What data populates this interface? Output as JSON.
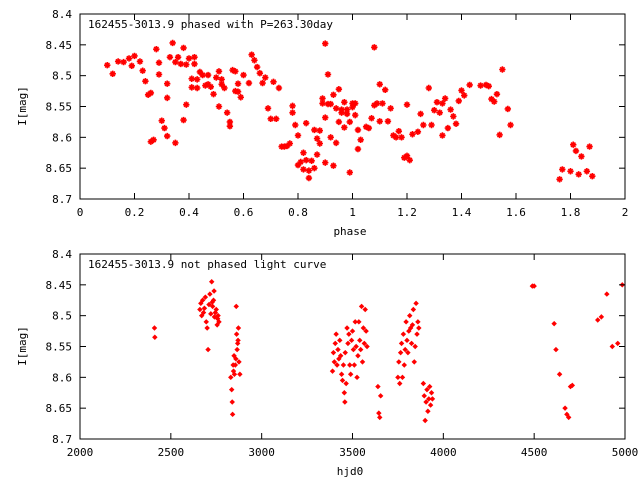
{
  "chart_data": [
    {
      "type": "scatter",
      "title": "162455-3013.9 phased with P=263.30day",
      "xlabel": "phase",
      "ylabel": "I[mag]",
      "xlim": [
        0,
        2
      ],
      "ylim": [
        8.4,
        8.7
      ],
      "y_inverted": true,
      "xticks": [
        "0",
        "0.2",
        "0.4",
        "0.6",
        "0.8",
        "1",
        "1.2",
        "1.4",
        "1.6",
        "1.8",
        "2"
      ],
      "yticks": [
        "8.4",
        "8.45",
        "8.5",
        "8.55",
        "8.6",
        "8.65",
        "8.7"
      ],
      "marker": "plus-bold",
      "color": "#ff0000",
      "points": [
        [
          0.1,
          8.483
        ],
        [
          0.12,
          8.497
        ],
        [
          0.14,
          8.477
        ],
        [
          0.16,
          8.478
        ],
        [
          0.18,
          8.472
        ],
        [
          0.19,
          8.484
        ],
        [
          0.2,
          8.468
        ],
        [
          0.22,
          8.477
        ],
        [
          0.23,
          8.492
        ],
        [
          0.24,
          8.509
        ],
        [
          0.25,
          8.531
        ],
        [
          0.26,
          8.528
        ],
        [
          0.26,
          8.607
        ],
        [
          0.27,
          8.604
        ],
        [
          0.28,
          8.457
        ],
        [
          0.29,
          8.479
        ],
        [
          0.29,
          8.498
        ],
        [
          0.3,
          8.573
        ],
        [
          0.31,
          8.585
        ],
        [
          0.32,
          8.513
        ],
        [
          0.32,
          8.536
        ],
        [
          0.32,
          8.598
        ],
        [
          0.33,
          8.47
        ],
        [
          0.34,
          8.447
        ],
        [
          0.35,
          8.478
        ],
        [
          0.35,
          8.609
        ],
        [
          0.36,
          8.47
        ],
        [
          0.37,
          8.481
        ],
        [
          0.38,
          8.455
        ],
        [
          0.38,
          8.572
        ],
        [
          0.39,
          8.547
        ],
        [
          0.39,
          8.482
        ],
        [
          0.4,
          8.472
        ],
        [
          0.41,
          8.519
        ],
        [
          0.41,
          8.505
        ],
        [
          0.42,
          8.47
        ],
        [
          0.42,
          8.481
        ],
        [
          0.43,
          8.506
        ],
        [
          0.43,
          8.52
        ],
        [
          0.44,
          8.494
        ],
        [
          0.45,
          8.499
        ],
        [
          0.46,
          8.516
        ],
        [
          0.47,
          8.499
        ],
        [
          0.47,
          8.514
        ],
        [
          0.48,
          8.518
        ],
        [
          0.49,
          8.53
        ],
        [
          0.5,
          8.503
        ],
        [
          0.51,
          8.493
        ],
        [
          0.51,
          8.55
        ],
        [
          0.52,
          8.514
        ],
        [
          0.52,
          8.506
        ],
        [
          0.53,
          8.52
        ],
        [
          0.54,
          8.56
        ],
        [
          0.55,
          8.575
        ],
        [
          0.55,
          8.582
        ],
        [
          0.56,
          8.491
        ],
        [
          0.57,
          8.493
        ],
        [
          0.57,
          8.525
        ],
        [
          0.58,
          8.513
        ],
        [
          0.58,
          8.526
        ],
        [
          0.59,
          8.535
        ],
        [
          0.6,
          8.499
        ],
        [
          0.62,
          8.512
        ],
        [
          0.63,
          8.466
        ],
        [
          0.64,
          8.475
        ],
        [
          0.65,
          8.486
        ],
        [
          0.66,
          8.496
        ],
        [
          0.67,
          8.512
        ],
        [
          0.68,
          8.503
        ],
        [
          0.69,
          8.553
        ],
        [
          0.7,
          8.57
        ],
        [
          0.71,
          8.51
        ],
        [
          0.72,
          8.57
        ],
        [
          0.73,
          8.52
        ],
        [
          0.74,
          8.615
        ],
        [
          0.75,
          8.615
        ],
        [
          0.76,
          8.614
        ],
        [
          0.77,
          8.61
        ],
        [
          0.78,
          8.549
        ],
        [
          0.78,
          8.56
        ],
        [
          0.79,
          8.58
        ],
        [
          0.8,
          8.597
        ],
        [
          0.8,
          8.645
        ],
        [
          0.81,
          8.64
        ],
        [
          0.82,
          8.625
        ],
        [
          0.82,
          8.652
        ],
        [
          0.83,
          8.577
        ],
        [
          0.83,
          8.637
        ],
        [
          0.84,
          8.654
        ],
        [
          0.84,
          8.666
        ],
        [
          0.85,
          8.638
        ],
        [
          0.86,
          8.588
        ],
        [
          0.86,
          8.65
        ],
        [
          0.87,
          8.602
        ],
        [
          0.87,
          8.628
        ],
        [
          0.88,
          8.589
        ],
        [
          0.88,
          8.61
        ],
        [
          0.89,
          8.537
        ],
        [
          0.89,
          8.545
        ],
        [
          0.9,
          8.448
        ],
        [
          0.9,
          8.568
        ],
        [
          0.9,
          8.641
        ],
        [
          0.91,
          8.498
        ],
        [
          0.91,
          8.546
        ],
        [
          0.92,
          8.546
        ],
        [
          0.92,
          8.6
        ],
        [
          0.93,
          8.531
        ],
        [
          0.93,
          8.646
        ],
        [
          0.94,
          8.553
        ],
        [
          0.94,
          8.609
        ],
        [
          0.95,
          8.522
        ],
        [
          0.95,
          8.575
        ],
        [
          0.96,
          8.555
        ],
        [
          0.96,
          8.56
        ],
        [
          0.97,
          8.543
        ],
        [
          0.97,
          8.584
        ],
        [
          0.98,
          8.562
        ],
        [
          0.98,
          8.555
        ],
        [
          0.99,
          8.575
        ],
        [
          0.99,
          8.657
        ],
        [
          1.0,
          8.545
        ],
        [
          1.0,
          8.551
        ],
        [
          1.01,
          8.545
        ],
        [
          1.01,
          8.564
        ],
        [
          1.02,
          8.588
        ],
        [
          1.02,
          8.619
        ],
        [
          1.03,
          8.604
        ],
        [
          1.05,
          8.583
        ],
        [
          1.06,
          8.585
        ],
        [
          1.07,
          8.569
        ],
        [
          1.08,
          8.454
        ],
        [
          1.08,
          8.548
        ],
        [
          1.09,
          8.545
        ],
        [
          1.1,
          8.574
        ],
        [
          1.1,
          8.514
        ],
        [
          1.11,
          8.545
        ],
        [
          1.12,
          8.523
        ],
        [
          1.13,
          8.574
        ],
        [
          1.14,
          8.553
        ],
        [
          1.15,
          8.597
        ],
        [
          1.16,
          8.6
        ],
        [
          1.17,
          8.59
        ],
        [
          1.18,
          8.6
        ],
        [
          1.19,
          8.633
        ],
        [
          1.2,
          8.63
        ],
        [
          1.2,
          8.547
        ],
        [
          1.21,
          8.637
        ],
        [
          1.22,
          8.595
        ],
        [
          1.24,
          8.591
        ],
        [
          1.25,
          8.562
        ],
        [
          1.26,
          8.58
        ],
        [
          1.28,
          8.52
        ],
        [
          1.29,
          8.58
        ],
        [
          1.3,
          8.556
        ],
        [
          1.31,
          8.543
        ],
        [
          1.32,
          8.56
        ],
        [
          1.33,
          8.545
        ],
        [
          1.33,
          8.597
        ],
        [
          1.34,
          8.537
        ],
        [
          1.35,
          8.585
        ],
        [
          1.36,
          8.555
        ],
        [
          1.37,
          8.566
        ],
        [
          1.38,
          8.578
        ],
        [
          1.39,
          8.541
        ],
        [
          1.4,
          8.524
        ],
        [
          1.41,
          8.532
        ],
        [
          1.43,
          8.515
        ],
        [
          1.47,
          8.516
        ],
        [
          1.49,
          8.515
        ],
        [
          1.5,
          8.517
        ],
        [
          1.51,
          8.538
        ],
        [
          1.52,
          8.542
        ],
        [
          1.53,
          8.53
        ],
        [
          1.54,
          8.596
        ],
        [
          1.55,
          8.49
        ],
        [
          1.57,
          8.554
        ],
        [
          1.58,
          8.58
        ],
        [
          1.76,
          8.668
        ],
        [
          1.77,
          8.652
        ],
        [
          1.8,
          8.655
        ],
        [
          1.81,
          8.612
        ],
        [
          1.82,
          8.622
        ],
        [
          1.83,
          8.66
        ],
        [
          1.84,
          8.631
        ],
        [
          1.86,
          8.655
        ],
        [
          1.87,
          8.615
        ],
        [
          1.88,
          8.663
        ]
      ]
    },
    {
      "type": "scatter",
      "title": "162455-3013.9 not phased light curve",
      "xlabel": "hjd0",
      "ylabel": "I[mag]",
      "xlim": [
        2000,
        5000
      ],
      "ylim": [
        8.4,
        8.7
      ],
      "y_inverted": true,
      "xticks": [
        "2000",
        "2500",
        "3000",
        "3500",
        "4000",
        "4500",
        "5000"
      ],
      "yticks": [
        "8.4",
        "8.45",
        "8.5",
        "8.55",
        "8.6",
        "8.65",
        "8.7"
      ],
      "marker": "diamond",
      "color": "#ff0000",
      "points": [
        [
          2410,
          8.52
        ],
        [
          2412,
          8.535
        ],
        [
          2660,
          8.49
        ],
        [
          2665,
          8.48
        ],
        [
          2670,
          8.5
        ],
        [
          2675,
          8.475
        ],
        [
          2680,
          8.495
        ],
        [
          2685,
          8.488
        ],
        [
          2690,
          8.47
        ],
        [
          2695,
          8.51
        ],
        [
          2700,
          8.52
        ],
        [
          2705,
          8.555
        ],
        [
          2710,
          8.482
        ],
        [
          2715,
          8.465
        ],
        [
          2720,
          8.497
        ],
        [
          2725,
          8.445
        ],
        [
          2728,
          8.478
        ],
        [
          2730,
          8.485
        ],
        [
          2735,
          8.475
        ],
        [
          2738,
          8.46
        ],
        [
          2740,
          8.502
        ],
        [
          2745,
          8.495
        ],
        [
          2750,
          8.49
        ],
        [
          2755,
          8.515
        ],
        [
          2758,
          8.505
        ],
        [
          2760,
          8.5
        ],
        [
          2765,
          8.51
        ],
        [
          2830,
          8.6
        ],
        [
          2835,
          8.62
        ],
        [
          2838,
          8.64
        ],
        [
          2840,
          8.66
        ],
        [
          2843,
          8.58
        ],
        [
          2845,
          8.59
        ],
        [
          2848,
          8.565
        ],
        [
          2850,
          8.595
        ],
        [
          2855,
          8.58
        ],
        [
          2858,
          8.57
        ],
        [
          2860,
          8.485
        ],
        [
          2862,
          8.53
        ],
        [
          2865,
          8.555
        ],
        [
          2868,
          8.545
        ],
        [
          2870,
          8.54
        ],
        [
          2872,
          8.52
        ],
        [
          2875,
          8.575
        ],
        [
          2880,
          8.595
        ],
        [
          3390,
          8.59
        ],
        [
          3395,
          8.56
        ],
        [
          3400,
          8.575
        ],
        [
          3405,
          8.545
        ],
        [
          3410,
          8.53
        ],
        [
          3415,
          8.58
        ],
        [
          3420,
          8.555
        ],
        [
          3425,
          8.57
        ],
        [
          3430,
          8.54
        ],
        [
          3435,
          8.565
        ],
        [
          3440,
          8.595
        ],
        [
          3445,
          8.605
        ],
        [
          3450,
          8.58
        ],
        [
          3455,
          8.625
        ],
        [
          3458,
          8.64
        ],
        [
          3460,
          8.56
        ],
        [
          3465,
          8.61
        ],
        [
          3470,
          8.52
        ],
        [
          3475,
          8.545
        ],
        [
          3480,
          8.53
        ],
        [
          3485,
          8.58
        ],
        [
          3490,
          8.595
        ],
        [
          3495,
          8.54
        ],
        [
          3500,
          8.525
        ],
        [
          3505,
          8.555
        ],
        [
          3510,
          8.58
        ],
        [
          3515,
          8.51
        ],
        [
          3520,
          8.55
        ],
        [
          3525,
          8.6
        ],
        [
          3530,
          8.565
        ],
        [
          3535,
          8.51
        ],
        [
          3540,
          8.54
        ],
        [
          3545,
          8.555
        ],
        [
          3550,
          8.485
        ],
        [
          3555,
          8.575
        ],
        [
          3560,
          8.52
        ],
        [
          3565,
          8.545
        ],
        [
          3570,
          8.49
        ],
        [
          3575,
          8.525
        ],
        [
          3580,
          8.55
        ],
        [
          3640,
          8.615
        ],
        [
          3645,
          8.658
        ],
        [
          3650,
          8.665
        ],
        [
          3655,
          8.63
        ],
        [
          3750,
          8.6
        ],
        [
          3755,
          8.575
        ],
        [
          3760,
          8.61
        ],
        [
          3765,
          8.56
        ],
        [
          3770,
          8.545
        ],
        [
          3775,
          8.6
        ],
        [
          3780,
          8.53
        ],
        [
          3785,
          8.58
        ],
        [
          3790,
          8.555
        ],
        [
          3795,
          8.51
        ],
        [
          3800,
          8.54
        ],
        [
          3805,
          8.56
        ],
        [
          3810,
          8.525
        ],
        [
          3815,
          8.5
        ],
        [
          3820,
          8.52
        ],
        [
          3825,
          8.545
        ],
        [
          3830,
          8.515
        ],
        [
          3835,
          8.49
        ],
        [
          3840,
          8.575
        ],
        [
          3845,
          8.55
        ],
        [
          3850,
          8.48
        ],
        [
          3855,
          8.53
        ],
        [
          3860,
          8.51
        ],
        [
          3865,
          8.52
        ],
        [
          3890,
          8.61
        ],
        [
          3895,
          8.63
        ],
        [
          3900,
          8.67
        ],
        [
          3905,
          8.64
        ],
        [
          3910,
          8.62
        ],
        [
          3915,
          8.655
        ],
        [
          3920,
          8.635
        ],
        [
          3925,
          8.615
        ],
        [
          3930,
          8.645
        ],
        [
          3935,
          8.625
        ],
        [
          3940,
          8.635
        ],
        [
          4490,
          8.452
        ],
        [
          4500,
          8.452
        ],
        [
          4610,
          8.513
        ],
        [
          4620,
          8.555
        ],
        [
          4640,
          8.595
        ],
        [
          4670,
          8.65
        ],
        [
          4680,
          8.66
        ],
        [
          4690,
          8.665
        ],
        [
          4700,
          8.615
        ],
        [
          4710,
          8.613
        ],
        [
          4850,
          8.507
        ],
        [
          4870,
          8.502
        ],
        [
          4900,
          8.465
        ],
        [
          4930,
          8.55
        ],
        [
          4960,
          8.545
        ],
        [
          4985,
          8.45
        ]
      ]
    }
  ]
}
